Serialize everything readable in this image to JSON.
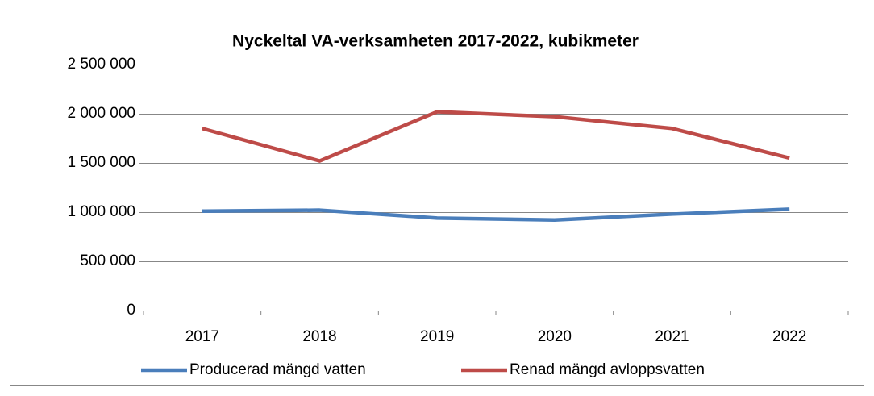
{
  "chart_data": {
    "type": "line",
    "title": "Nyckeltal VA-verksamheten 2017-2022, kubikmeter",
    "categories": [
      "2017",
      "2018",
      "2019",
      "2020",
      "2021",
      "2022"
    ],
    "series": [
      {
        "name": "Producerad mängd vatten",
        "color": "#4a7ebb",
        "values": [
          1010000,
          1020000,
          940000,
          920000,
          980000,
          1030000
        ]
      },
      {
        "name": "Renad mängd avloppsvatten",
        "color": "#be4b48",
        "values": [
          1850000,
          1520000,
          2020000,
          1970000,
          1850000,
          1550000
        ]
      }
    ],
    "ylim": [
      0,
      2500000
    ],
    "yticks": [
      0,
      {
        "value": 500000,
        "label": "500 000"
      },
      {
        "value": 1000000,
        "label": "1 000 000"
      },
      {
        "value": 1500000,
        "label": "1 500 000"
      },
      {
        "value": 2000000,
        "label": "2 000 000"
      },
      {
        "value": 2500000,
        "label": "2 500 000"
      }
    ],
    "grid": true,
    "legend": "bottom"
  }
}
